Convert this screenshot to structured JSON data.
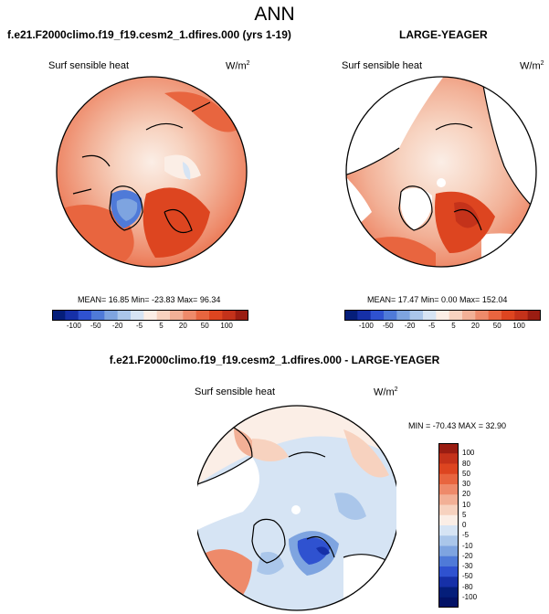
{
  "header": {
    "title": "ANN"
  },
  "panels": {
    "left": {
      "title": "f.e21.F2000climo.f19_f19.cesm2_1.dfires.000 (yrs 1-19)",
      "variable": "Surf sensible heat",
      "units_base": "W/m",
      "units_exp": "2",
      "stats": "MEAN=  16.85  Min= -23.83  Max=  96.34"
    },
    "right": {
      "title": "LARGE-YEAGER",
      "variable": "Surf sensible heat",
      "units_base": "W/m",
      "units_exp": "2",
      "stats": "MEAN=  17.47  Min=   0.00  Max= 152.04"
    },
    "diff": {
      "title": "f.e21.F2000climo.f19_f19.cesm2_1.dfires.000 - LARGE-YEAGER",
      "variable": "Surf sensible heat",
      "units_base": "W/m",
      "units_exp": "2",
      "stats": "MIN = -70.43 MAX =  32.90"
    }
  },
  "colorbar_main": {
    "ticks": [
      "-100",
      "-50",
      "-20",
      "-5",
      "5",
      "20",
      "50",
      "100"
    ],
    "colors": [
      "#051e7a",
      "#1630a8",
      "#2f52d0",
      "#4f7ad8",
      "#7ea4e0",
      "#aac6ea",
      "#d6e4f4",
      "#fbeee6",
      "#f7d2bf",
      "#f2b096",
      "#ee8a6a",
      "#e8653f",
      "#dd4520",
      "#c4321a",
      "#9a1d12"
    ]
  },
  "colorbar_diff": {
    "ticks": [
      "100",
      "80",
      "50",
      "30",
      "20",
      "10",
      "5",
      "0",
      "-5",
      "-10",
      "-20",
      "-30",
      "-50",
      "-80",
      "-100"
    ],
    "colors": [
      "#9a1d12",
      "#c4321a",
      "#dd4520",
      "#e8653f",
      "#ee8a6a",
      "#f2b096",
      "#f7d2bf",
      "#fbeee6",
      "#d6e4f4",
      "#aac6ea",
      "#7ea4e0",
      "#4f7ad8",
      "#2f52d0",
      "#1630a8",
      "#051e7a",
      "#031266"
    ]
  }
}
